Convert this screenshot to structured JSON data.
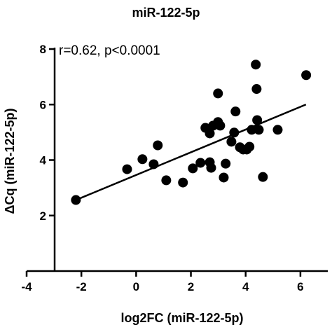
{
  "chart_data": {
    "type": "scatter",
    "title": "miR-122-5p",
    "annotation": "r=0.62, p<0.0001",
    "x_label": "log2FC (miR-122-5p)",
    "y_label": "ΔCq (miR-122-5p)",
    "xlim": [
      -4,
      7
    ],
    "ylim": [
      0,
      8
    ],
    "xticks": [
      -4,
      -2,
      0,
      2,
      4,
      6
    ],
    "yticks": [
      2,
      4,
      6,
      8
    ],
    "color": "#000000",
    "x": [
      -2.2,
      -0.33,
      0.23,
      0.64,
      0.79,
      1.1,
      1.71,
      2.07,
      2.35,
      2.53,
      2.69,
      2.69,
      2.74,
      2.81,
      2.99,
      2.99,
      3.07,
      3.2,
      3.27,
      3.48,
      3.58,
      3.63,
      3.79,
      3.91,
      4.04,
      4.14,
      4.22,
      4.37,
      4.4,
      4.42,
      4.48,
      4.63,
      5.17,
      6.21
    ],
    "values": [
      2.56,
      3.67,
      4.03,
      3.85,
      4.53,
      3.27,
      3.19,
      3.7,
      3.9,
      5.16,
      4.96,
      3.92,
      3.72,
      5.24,
      6.4,
      5.37,
      5.24,
      3.37,
      3.87,
      4.66,
      4.99,
      5.75,
      4.46,
      4.38,
      4.38,
      4.48,
      5.09,
      7.44,
      6.56,
      5.44,
      5.09,
      3.39,
      5.09,
      7.06
    ],
    "fit_line": {
      "x": [
        -2.2,
        6.2
      ],
      "y": [
        2.56,
        6.0
      ]
    }
  }
}
